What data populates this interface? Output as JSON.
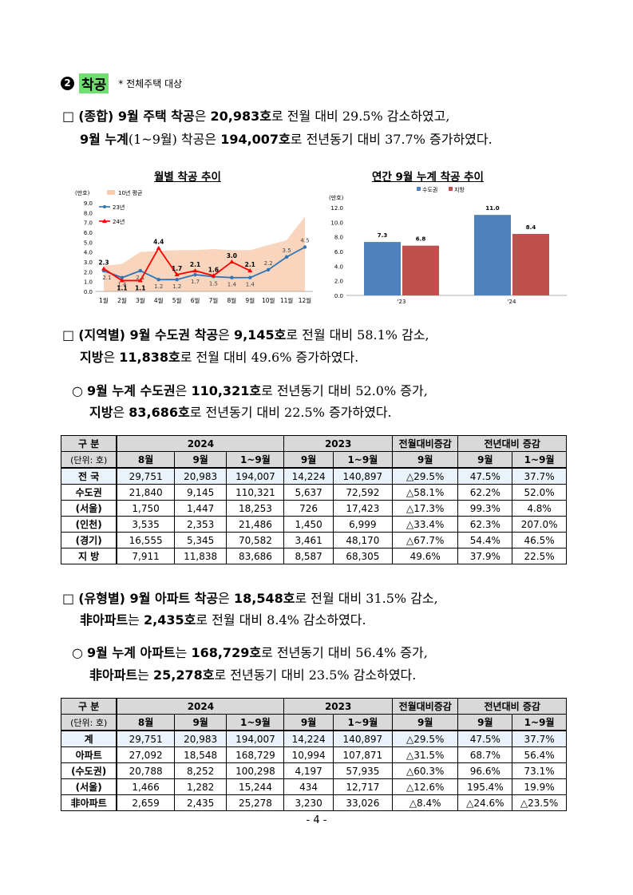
{
  "section": {
    "num": "2",
    "title": "착공",
    "note": "* 전체주택 대상"
  },
  "p1": {
    "l1": [
      [
        "□ ",
        ""
      ],
      [
        "(종합) 9월 주택 착공",
        "b"
      ],
      [
        "은 ",
        ""
      ],
      [
        "20,983호",
        "b"
      ],
      [
        "로 전월 대비 29.5% 감소하였고,",
        ""
      ]
    ],
    "l2": [
      [
        "9월 누계",
        "b"
      ],
      [
        "(1~9월) 착공은 ",
        ""
      ],
      [
        "194,007호",
        "b"
      ],
      [
        "로 전년동기 대비 37.7% 증가하였다.",
        ""
      ]
    ]
  },
  "chart1": {
    "title": "월별 착공 추이",
    "unit": "(만호)",
    "legend": [
      "10년 평균",
      "23년",
      "24년"
    ],
    "categories": [
      "1월",
      "2월",
      "3월",
      "4월",
      "5월",
      "6월",
      "7월",
      "8월",
      "9월",
      "10월",
      "11월",
      "12월"
    ],
    "yticks": [
      "0.0",
      "1.0",
      "2.0",
      "3.0",
      "4.0",
      "5.0",
      "6.0",
      "7.0",
      "8.0",
      "9.0"
    ],
    "avg10": [
      2.6,
      2.8,
      4.0,
      4.1,
      4.2,
      4.2,
      4.3,
      4.2,
      4.2,
      4.7,
      5.2,
      7.6
    ],
    "y23": [
      2.1,
      1.4,
      2.1,
      1.2,
      1.2,
      1.7,
      1.5,
      1.4,
      1.4,
      2.2,
      3.5,
      4.5
    ],
    "y23_labels": [
      "2.1",
      "1.4",
      "2.1",
      "1.2",
      "1.2",
      "1.7",
      "1.5",
      "1.4",
      "1.4",
      "2.2",
      "3.5",
      "4.5"
    ],
    "y24": [
      2.3,
      1.1,
      1.1,
      4.4,
      1.7,
      2.1,
      1.6,
      3.0,
      2.1
    ],
    "y24_labels": [
      "2.3",
      "1.1",
      "1.1",
      "4.4",
      "1.7",
      "2.1",
      "1.6",
      "3.0",
      "2.1"
    ],
    "colors": {
      "avg": "#f8cbad",
      "y23": "#2e75b6",
      "y24": "#ff0000"
    }
  },
  "chart2": {
    "title": "연간 9월 누계 착공 추이",
    "unit": "(만호)",
    "legend": [
      "수도권",
      "지방"
    ],
    "categories": [
      "'23",
      "'24"
    ],
    "yticks": [
      "0.0",
      "2.0",
      "4.0",
      "6.0",
      "8.0",
      "10.0",
      "12.0"
    ],
    "series": [
      {
        "name": "수도권",
        "values": [
          7.3,
          11.0
        ],
        "labels": [
          "7.3",
          "11.0"
        ],
        "color": "#4f81bd"
      },
      {
        "name": "지방",
        "values": [
          6.8,
          8.4
        ],
        "labels": [
          "6.8",
          "8.4"
        ],
        "color": "#c0504d"
      }
    ]
  },
  "p2": {
    "l1": [
      [
        "□ ",
        ""
      ],
      [
        "(지역별) 9월 수도권 착공",
        "b"
      ],
      [
        "은 ",
        ""
      ],
      [
        "9,145호",
        "b"
      ],
      [
        "로 전월 대비 58.1% 감소,",
        ""
      ]
    ],
    "l2": [
      [
        "지방",
        "b"
      ],
      [
        "은 ",
        ""
      ],
      [
        "11,838호",
        "b"
      ],
      [
        "로 전월 대비 49.6% 증가하였다.",
        ""
      ]
    ]
  },
  "p3": {
    "l1": [
      [
        "○ ",
        ""
      ],
      [
        "9월 누계 수도권",
        "b"
      ],
      [
        "은 ",
        ""
      ],
      [
        "110,321호",
        "b"
      ],
      [
        "로 전년동기 대비 52.0% 증가,",
        ""
      ]
    ],
    "l2": [
      [
        "지방",
        "b"
      ],
      [
        "은 ",
        ""
      ],
      [
        "83,686호",
        "b"
      ],
      [
        "로 전년동기 대비 22.5% 증가하였다.",
        ""
      ]
    ]
  },
  "table1": {
    "h1": [
      "구 분",
      "2024",
      "2023",
      "전월대비증감",
      "전년대비 증감"
    ],
    "h2": [
      "(단위: 호)",
      "8월",
      "9월",
      "1~9월",
      "9월",
      "1~9월",
      "9월",
      "9월",
      "1~9월"
    ],
    "rows": [
      [
        "전 국",
        "29,751",
        "20,983",
        "194,007",
        "14,224",
        "140,897",
        "△29.5%",
        "47.5%",
        "37.7%"
      ],
      [
        "수도권",
        "21,840",
        "9,145",
        "110,321",
        "5,637",
        "72,592",
        "△58.1%",
        "62.2%",
        "52.0%"
      ],
      [
        "(서울)",
        "1,750",
        "1,447",
        "18,253",
        "726",
        "17,423",
        "△17.3%",
        "99.3%",
        "4.8%"
      ],
      [
        "(인천)",
        "3,535",
        "2,353",
        "21,486",
        "1,450",
        "6,999",
        "△33.4%",
        "62.3%",
        "207.0%"
      ],
      [
        "(경기)",
        "16,555",
        "5,345",
        "70,582",
        "3,461",
        "48,170",
        "△67.7%",
        "54.4%",
        "46.5%"
      ],
      [
        "지 방",
        "7,911",
        "11,838",
        "83,686",
        "8,587",
        "68,305",
        "49.6%",
        "37.9%",
        "22.5%"
      ]
    ]
  },
  "p4": {
    "l1": [
      [
        "□ ",
        ""
      ],
      [
        "(유형별) 9월 아파트 착공",
        "b"
      ],
      [
        "은 ",
        ""
      ],
      [
        "18,548호",
        "b"
      ],
      [
        "로 전월 대비 31.5% 감소,",
        ""
      ]
    ],
    "l2": [
      [
        "非아파트",
        "b"
      ],
      [
        "는 ",
        ""
      ],
      [
        "2,435호",
        "b"
      ],
      [
        "로 전월 대비 8.4% 감소하였다.",
        ""
      ]
    ]
  },
  "p5": {
    "l1": [
      [
        "○ ",
        ""
      ],
      [
        "9월 누계 아파트",
        "b"
      ],
      [
        "는 ",
        ""
      ],
      [
        "168,729호",
        "b"
      ],
      [
        "로 전년동기 대비 56.4% 증가,",
        ""
      ]
    ],
    "l2": [
      [
        "非아파트",
        "b"
      ],
      [
        "는 ",
        ""
      ],
      [
        "25,278호",
        "b"
      ],
      [
        "로 전년동기 대비 23.5% 감소하였다.",
        ""
      ]
    ]
  },
  "table2": {
    "h1": [
      "구 분",
      "2024",
      "2023",
      "전월대비증감",
      "전년대비 증감"
    ],
    "h2": [
      "(단위: 호)",
      "8월",
      "9월",
      "1~9월",
      "9월",
      "1~9월",
      "9월",
      "9월",
      "1~9월"
    ],
    "rows": [
      [
        "계",
        "29,751",
        "20,983",
        "194,007",
        "14,224",
        "140,897",
        "△29.5%",
        "47.5%",
        "37.7%"
      ],
      [
        "아파트",
        "27,092",
        "18,548",
        "168,729",
        "10,994",
        "107,871",
        "△31.5%",
        "68.7%",
        "56.4%"
      ],
      [
        "(수도권)",
        "20,788",
        "8,252",
        "100,298",
        "4,197",
        "57,935",
        "△60.3%",
        "96.6%",
        "73.1%"
      ],
      [
        "(서울)",
        "1,466",
        "1,282",
        "15,244",
        "434",
        "12,717",
        "△12.6%",
        "195.4%",
        "19.9%"
      ],
      [
        "非아파트",
        "2,659",
        "2,435",
        "25,278",
        "3,230",
        "33,026",
        "△8.4%",
        "△24.6%",
        "△23.5%"
      ]
    ]
  },
  "page": "- 4 -"
}
